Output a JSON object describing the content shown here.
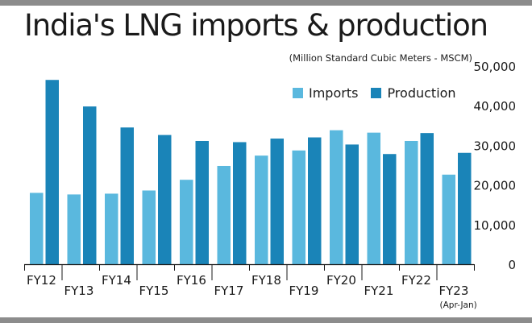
{
  "title": "India's LNG imports & production",
  "subtitle": "(Million Standard Cubic Meters - MSCM)",
  "colors": {
    "imports": "#5ab8de",
    "production": "#1a84b8",
    "band": "#8c8c8c"
  },
  "chart_data": {
    "type": "bar",
    "categories": [
      "FY12",
      "FY13",
      "FY14",
      "FY15",
      "FY16",
      "FY17",
      "FY18",
      "FY19",
      "FY20",
      "FY21",
      "FY22",
      "FY23"
    ],
    "category_notes": [
      "",
      "",
      "",
      "",
      "",
      "",
      "",
      "",
      "",
      "",
      "",
      "(Apr-Jan)"
    ],
    "series": [
      {
        "name": "Imports",
        "values": [
          18000,
          17600,
          17800,
          18600,
          21300,
          24800,
          27400,
          28700,
          33800,
          33200,
          31100,
          22600
        ]
      },
      {
        "name": "Production",
        "values": [
          46500,
          39800,
          34500,
          32600,
          31100,
          30800,
          31700,
          32000,
          30200,
          27800,
          33100,
          28100
        ]
      }
    ],
    "ylim": [
      0,
      50000
    ],
    "yticks": [
      "0",
      "10,000",
      "20,000",
      "30,000",
      "40,000",
      "50,000"
    ],
    "legend_position": "top-right",
    "grid": false
  }
}
